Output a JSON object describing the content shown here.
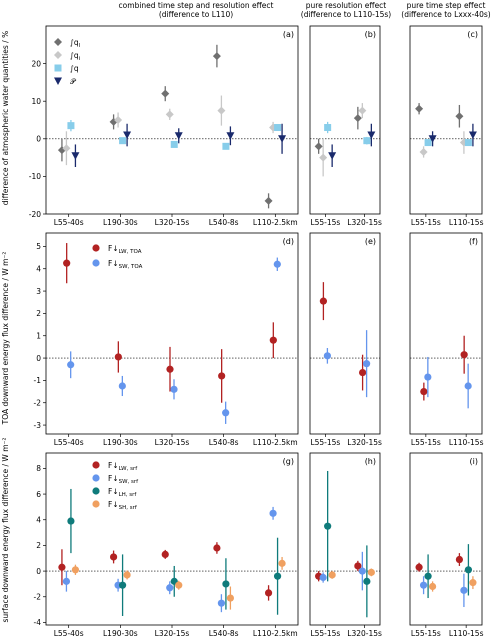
{
  "figure": {
    "col_titles": [
      [
        "combined time step and resolution effect",
        "(difference to L110)"
      ],
      [
        "pure resolution effect",
        "(difference to L110-15s)"
      ],
      [
        "pure time step effect",
        "(difference to Lxxx-40s)"
      ]
    ],
    "row_ylabels": [
      "difference of atmospheric water quantities / %",
      "TOA downward energy flux difference / W m⁻²",
      "surface downward energy flux difference / W m⁻²"
    ],
    "panel_letters": [
      "(a)",
      "(b)",
      "(c)",
      "(d)",
      "(e)",
      "(f)",
      "(g)",
      "(h)",
      "(i)"
    ],
    "colors": {
      "ql": "#707070",
      "qi": "#c8c8c8",
      "q": "#87cdea",
      "P": "#1a2a6c",
      "lw": "#b22222",
      "sw": "#6495ed",
      "lh": "#0f7b7b",
      "sh": "#f0a060"
    }
  },
  "chart_data": [
    {
      "type": "scatter",
      "panel": "(a)",
      "ylim": [
        -20,
        30
      ],
      "yticks": [
        -20,
        -10,
        0,
        10,
        20
      ],
      "categories": [
        "L55-40s",
        "L190-30s",
        "L320-15s",
        "L540-8s",
        "L110-2.5km"
      ],
      "legend": [
        "∫q_l",
        "∫q_i",
        "∫q",
        "P"
      ],
      "series": [
        {
          "name": "∫q_l",
          "marker": "diamond",
          "color": "#707070",
          "values": [
            -3,
            4.5,
            12,
            22,
            -16.5
          ],
          "err": [
            3,
            2,
            2,
            3,
            2
          ]
        },
        {
          "name": "∫q_i",
          "marker": "diamond",
          "color": "#c8c8c8",
          "values": [
            -2.5,
            5,
            6.5,
            7.5,
            3
          ],
          "err": [
            4.5,
            2,
            1.5,
            4,
            1.5
          ]
        },
        {
          "name": "∫q",
          "marker": "square",
          "color": "#87cdea",
          "values": [
            3.5,
            -0.5,
            -1.5,
            -2,
            3
          ],
          "err": [
            1.5,
            0.5,
            0.5,
            0.5,
            0.8
          ]
        },
        {
          "name": "P",
          "marker": "triangle",
          "color": "#1a2a6c",
          "values": [
            -4.5,
            1,
            0.8,
            0.8,
            0
          ],
          "err": [
            3,
            3,
            2,
            2.5,
            4
          ]
        }
      ]
    },
    {
      "type": "scatter",
      "panel": "(b)",
      "ylim": [
        -20,
        30
      ],
      "categories": [
        "L55-15s",
        "L320-15s"
      ],
      "series": [
        {
          "name": "∫q_l",
          "marker": "diamond",
          "color": "#707070",
          "values": [
            -2,
            5.5
          ],
          "err": [
            2,
            3
          ]
        },
        {
          "name": "∫q_i",
          "marker": "diamond",
          "color": "#c8c8c8",
          "values": [
            -5,
            7.5
          ],
          "err": [
            5,
            2
          ]
        },
        {
          "name": "∫q",
          "marker": "square",
          "color": "#87cdea",
          "values": [
            3,
            -0.5
          ],
          "err": [
            1.5,
            1
          ]
        },
        {
          "name": "P",
          "marker": "triangle",
          "color": "#1a2a6c",
          "values": [
            -4.5,
            1
          ],
          "err": [
            3,
            3
          ]
        }
      ]
    },
    {
      "type": "scatter",
      "panel": "(c)",
      "ylim": [
        -20,
        30
      ],
      "categories": [
        "L55-15s",
        "L110-15s"
      ],
      "series": [
        {
          "name": "∫q_l",
          "marker": "diamond",
          "color": "#707070",
          "values": [
            8,
            6
          ],
          "err": [
            1.5,
            3
          ]
        },
        {
          "name": "∫q_i",
          "marker": "diamond",
          "color": "#c8c8c8",
          "values": [
            -3.5,
            -1
          ],
          "err": [
            1.5,
            3
          ]
        },
        {
          "name": "∫q",
          "marker": "square",
          "color": "#87cdea",
          "values": [
            -1,
            -1
          ],
          "err": [
            0.5,
            0.5
          ]
        },
        {
          "name": "P",
          "marker": "triangle",
          "color": "#1a2a6c",
          "values": [
            0,
            1
          ],
          "err": [
            2,
            3
          ]
        }
      ]
    },
    {
      "type": "scatter",
      "panel": "(d)",
      "ylim": [
        -3.4,
        5.6
      ],
      "yticks": [
        -3,
        -2,
        -1,
        0,
        1,
        2,
        3,
        4,
        5
      ],
      "categories": [
        "L55-40s",
        "L190-30s",
        "L320-15s",
        "L540-8s",
        "L110-2.5km"
      ],
      "legend": [
        "F↓LW,TOA",
        "F↓SW,TOA"
      ],
      "series": [
        {
          "name": "F↓LW,TOA",
          "marker": "circle",
          "color": "#b22222",
          "values": [
            4.25,
            0.05,
            -0.5,
            -0.8,
            0.8
          ],
          "err": [
            0.9,
            0.7,
            1.0,
            1.2,
            0.8
          ]
        },
        {
          "name": "F↓SW,TOA",
          "marker": "circle",
          "color": "#6495ed",
          "values": [
            -0.3,
            -1.25,
            -1.4,
            -2.45,
            4.2
          ],
          "err": [
            0.6,
            0.45,
            0.45,
            0.5,
            0.3
          ]
        }
      ]
    },
    {
      "type": "scatter",
      "panel": "(e)",
      "ylim": [
        -3.4,
        5.6
      ],
      "categories": [
        "L55-15s",
        "L320-15s"
      ],
      "series": [
        {
          "name": "F↓LW,TOA",
          "marker": "circle",
          "color": "#b22222",
          "values": [
            2.55,
            -0.65
          ],
          "err": [
            0.85,
            0.8
          ]
        },
        {
          "name": "F↓SW,TOA",
          "marker": "circle",
          "color": "#6495ed",
          "values": [
            0.1,
            -0.25
          ],
          "err": [
            0.35,
            1.5
          ]
        }
      ]
    },
    {
      "type": "scatter",
      "panel": "(f)",
      "ylim": [
        -3.4,
        5.6
      ],
      "categories": [
        "L55-15s",
        "L110-15s"
      ],
      "series": [
        {
          "name": "F↓LW,TOA",
          "marker": "circle",
          "color": "#b22222",
          "values": [
            -1.5,
            0.15
          ],
          "err": [
            0.4,
            0.85
          ]
        },
        {
          "name": "F↓SW,TOA",
          "marker": "circle",
          "color": "#6495ed",
          "values": [
            -0.85,
            -1.25
          ],
          "err": [
            0.9,
            1.0
          ]
        }
      ]
    },
    {
      "type": "scatter",
      "panel": "(g)",
      "ylim": [
        -4.2,
        9.2
      ],
      "yticks": [
        -4,
        -2,
        0,
        2,
        4,
        6,
        8
      ],
      "categories": [
        "L55-40s",
        "L190-30s",
        "L320-15s",
        "L540-8s",
        "L110-2.5km"
      ],
      "legend": [
        "F↓LW,srf",
        "F↓SW,srf",
        "F↓LH,srf",
        "F↓SH,srf"
      ],
      "series": [
        {
          "name": "F↓LW,srf",
          "marker": "circle",
          "color": "#b22222",
          "values": [
            0.3,
            1.1,
            1.3,
            1.8,
            -1.7
          ],
          "err": [
            1.4,
            0.5,
            0.35,
            0.45,
            0.6
          ]
        },
        {
          "name": "F↓SW,srf",
          "marker": "circle",
          "color": "#6495ed",
          "values": [
            -0.8,
            -1.1,
            -1.3,
            -2.5,
            4.5
          ],
          "err": [
            0.8,
            0.5,
            0.5,
            0.7,
            0.5
          ]
        },
        {
          "name": "F↓LH,srf",
          "marker": "circle",
          "color": "#0f7b7b",
          "values": [
            3.9,
            -1.1,
            -0.8,
            -1,
            -0.4
          ],
          "err": [
            2.5,
            2.4,
            1.2,
            2.0,
            3.0
          ]
        },
        {
          "name": "F↓SH,srf",
          "marker": "circle",
          "color": "#f0a060",
          "values": [
            0.1,
            -0.3,
            -1.1,
            -2.1,
            0.6
          ],
          "err": [
            0.4,
            0.35,
            0.35,
            0.9,
            0.5
          ]
        }
      ]
    },
    {
      "type": "scatter",
      "panel": "(h)",
      "ylim": [
        -4.2,
        9.2
      ],
      "categories": [
        "L55-15s",
        "L320-15s"
      ],
      "series": [
        {
          "name": "F↓LW,srf",
          "marker": "circle",
          "color": "#b22222",
          "values": [
            -0.4,
            0.4
          ],
          "err": [
            0.4,
            0.4
          ]
        },
        {
          "name": "F↓SW,srf",
          "marker": "circle",
          "color": "#6495ed",
          "values": [
            -0.5,
            0
          ],
          "err": [
            0.4,
            1.5
          ]
        },
        {
          "name": "F↓LH,srf",
          "marker": "circle",
          "color": "#0f7b7b",
          "values": [
            3.5,
            -0.8
          ],
          "err": [
            4.3,
            2.8
          ]
        },
        {
          "name": "F↓SH,srf",
          "marker": "circle",
          "color": "#f0a060",
          "values": [
            -0.3,
            -0.1
          ],
          "err": [
            0.3,
            0.3
          ]
        }
      ]
    },
    {
      "type": "scatter",
      "panel": "(i)",
      "ylim": [
        -4.2,
        9.2
      ],
      "categories": [
        "L55-15s",
        "L110-15s"
      ],
      "series": [
        {
          "name": "F↓LW,srf",
          "marker": "circle",
          "color": "#b22222",
          "values": [
            0.3,
            0.9
          ],
          "err": [
            0.35,
            0.5
          ]
        },
        {
          "name": "F↓SW,srf",
          "marker": "circle",
          "color": "#6495ed",
          "values": [
            -1.1,
            -1.5
          ],
          "err": [
            0.7,
            1.3
          ]
        },
        {
          "name": "F↓LH,srf",
          "marker": "circle",
          "color": "#0f7b7b",
          "values": [
            -0.4,
            0.1
          ],
          "err": [
            1.7,
            2.0
          ]
        },
        {
          "name": "F↓SH,srf",
          "marker": "circle",
          "color": "#f0a060",
          "values": [
            -1.2,
            -0.9
          ],
          "err": [
            0.4,
            0.5
          ]
        }
      ]
    }
  ]
}
